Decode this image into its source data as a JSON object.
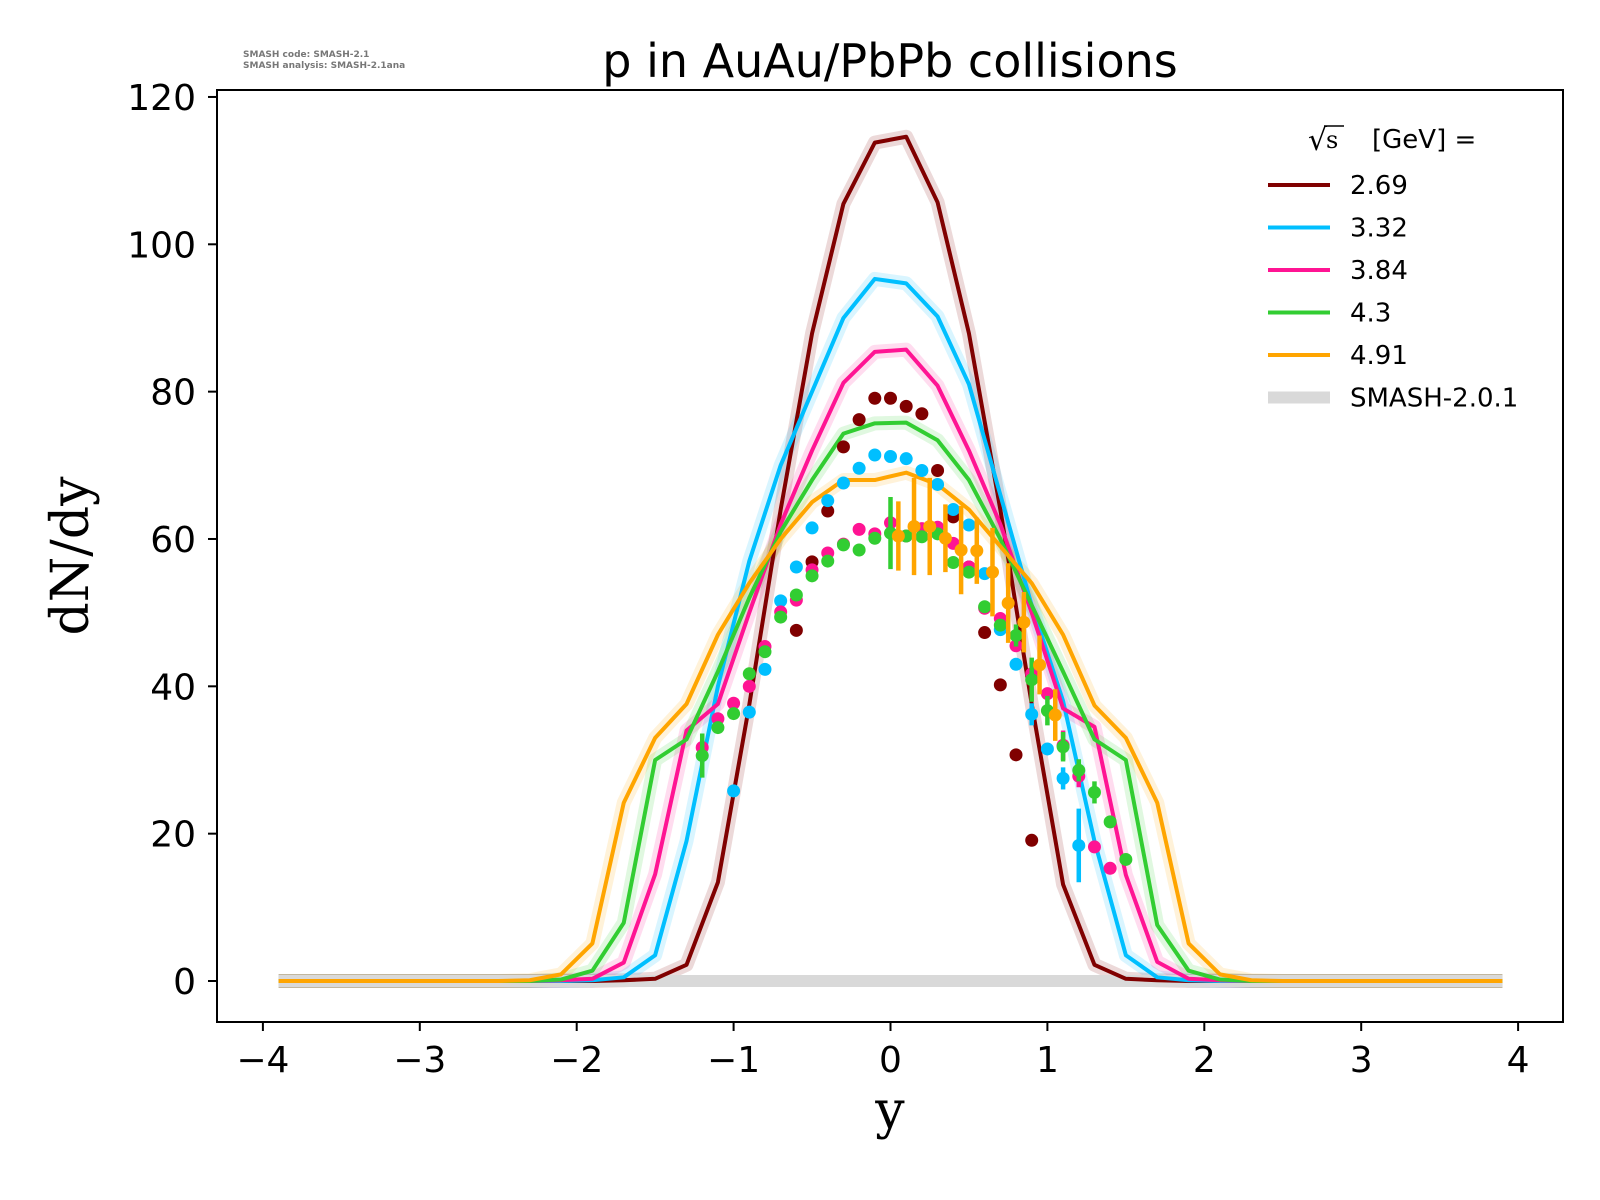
{
  "chart_data": {
    "type": "line",
    "title": "p in AuAu/PbPb collisions",
    "xlabel": "y",
    "ylabel": "dN/dy",
    "xlim": [
      -4.3,
      4.3
    ],
    "ylim": [
      -5.5,
      121
    ],
    "xticks": [
      "−4",
      "−3",
      "−2",
      "−1",
      "0",
      "1",
      "2",
      "3",
      "4"
    ],
    "xtick_values": [
      -4,
      -3,
      -2,
      -1,
      0,
      1,
      2,
      3,
      4
    ],
    "yticks": [
      "0",
      "20",
      "40",
      "60",
      "80",
      "100",
      "120"
    ],
    "ytick_values": [
      0,
      20,
      40,
      60,
      80,
      100,
      120
    ],
    "grid": false,
    "watermark": [
      "SMASH code:      SMASH-2.1",
      "SMASH analysis: SMASH-2.1ana"
    ],
    "legend": {
      "title_sqrt": "s",
      "title": "[GeV] =",
      "placement": "top-right",
      "band_label": "SMASH-2.0.1",
      "band_color": "#d9d9d9"
    },
    "x": [
      -3.9,
      -3.7,
      -3.5,
      -3.3,
      -3.1,
      -2.9,
      -2.7,
      -2.5,
      -2.3,
      -2.1,
      -1.9,
      -1.7,
      -1.5,
      -1.3,
      -1.1,
      -0.9,
      -0.7,
      -0.5,
      -0.3,
      -0.1,
      0.1,
      0.3,
      0.5,
      0.7,
      0.9,
      1.1,
      1.3,
      1.5,
      1.7,
      1.9,
      2.1,
      2.3,
      2.5,
      2.7,
      2.9,
      3.1,
      3.3,
      3.5,
      3.7,
      3.9
    ],
    "series": [
      {
        "name": "2.69",
        "color": "#800000",
        "values": [
          0,
          0,
          0,
          0,
          0,
          0,
          0,
          0,
          0,
          0,
          0,
          0.1,
          0.3,
          2.2,
          13.4,
          37.5,
          64,
          87.9,
          105.5,
          113.8,
          114.6,
          105.7,
          87.9,
          64,
          37.6,
          13.1,
          2.2,
          0.3,
          0.1,
          0,
          0,
          0,
          0,
          0,
          0,
          0,
          0,
          0,
          0,
          0
        ],
        "points": [
          [
            -0.6,
            47.6,
            0
          ],
          [
            -0.5,
            56.9,
            0
          ],
          [
            -0.4,
            63.8,
            0
          ],
          [
            -0.3,
            72.5,
            0
          ],
          [
            -0.2,
            76.2,
            0
          ],
          [
            -0.1,
            79.1,
            0
          ],
          [
            0,
            79.1,
            0
          ],
          [
            0.1,
            78.0,
            0
          ],
          [
            0.2,
            77.0,
            0
          ],
          [
            0.3,
            69.3,
            0
          ],
          [
            0.4,
            63.0,
            0
          ],
          [
            0.5,
            56.2,
            0
          ],
          [
            0.6,
            47.3,
            0
          ],
          [
            0.7,
            40.2,
            0
          ],
          [
            0.8,
            30.7,
            0
          ],
          [
            0.9,
            19.1,
            0
          ]
        ]
      },
      {
        "name": "3.32",
        "color": "#00bfff",
        "values": [
          0,
          0,
          0,
          0,
          0,
          0,
          0,
          0,
          0,
          0,
          0.1,
          0.5,
          3.5,
          19,
          40,
          57,
          70,
          80,
          90,
          95.3,
          94.7,
          90.2,
          81,
          66,
          51,
          38,
          19,
          3.5,
          0.5,
          0.1,
          0,
          0,
          0,
          0,
          0,
          0,
          0,
          0,
          0,
          0
        ],
        "points": [
          [
            -1.0,
            25.8,
            0
          ],
          [
            -0.9,
            36.5,
            0
          ],
          [
            -0.8,
            42.3,
            0
          ],
          [
            -0.7,
            51.6,
            0
          ],
          [
            -0.6,
            56.2,
            0
          ],
          [
            -0.5,
            61.5,
            0
          ],
          [
            -0.4,
            65.2,
            0
          ],
          [
            -0.3,
            67.6,
            0
          ],
          [
            -0.2,
            69.6,
            0
          ],
          [
            -0.1,
            71.4,
            0
          ],
          [
            0,
            71.2,
            0
          ],
          [
            0.1,
            70.9,
            0
          ],
          [
            0.2,
            69.3,
            0
          ],
          [
            0.3,
            67.4,
            0
          ],
          [
            0.4,
            64.0,
            0
          ],
          [
            0.5,
            61.9,
            0
          ],
          [
            0.6,
            55.3,
            0
          ],
          [
            0.7,
            47.7,
            0
          ],
          [
            0.8,
            43.0,
            0
          ],
          [
            0.9,
            36.2,
            1.5
          ],
          [
            1.0,
            31.5,
            0
          ],
          [
            1.1,
            27.5,
            1.5
          ],
          [
            1.2,
            18.4,
            5
          ]
        ]
      },
      {
        "name": "3.84",
        "color": "#ff1493",
        "values": [
          0,
          0,
          0,
          0,
          0,
          0,
          0,
          0,
          0,
          0.1,
          0.3,
          2.5,
          14.5,
          34,
          37.6,
          50,
          62,
          72,
          81.2,
          85.4,
          85.7,
          80.8,
          72,
          62,
          50,
          37,
          34.5,
          14.4,
          2.6,
          0.3,
          0.1,
          0,
          0,
          0,
          0,
          0,
          0,
          0,
          0,
          0
        ],
        "points": [
          [
            -1.2,
            31.7,
            0
          ],
          [
            -1.1,
            35.6,
            0
          ],
          [
            -1.0,
            37.7,
            0
          ],
          [
            -0.9,
            40.0,
            0
          ],
          [
            -0.8,
            45.4,
            0
          ],
          [
            -0.7,
            50.1,
            0
          ],
          [
            -0.6,
            51.7,
            0
          ],
          [
            -0.5,
            55.8,
            0
          ],
          [
            -0.4,
            58.1,
            0
          ],
          [
            -0.3,
            59.3,
            0
          ],
          [
            -0.2,
            61.3,
            0
          ],
          [
            -0.1,
            60.7,
            0
          ],
          [
            0,
            62.2,
            0
          ],
          [
            0.1,
            60.4,
            0
          ],
          [
            0.2,
            61.4,
            0
          ],
          [
            0.3,
            61.6,
            0
          ],
          [
            0.4,
            59.4,
            0
          ],
          [
            0.5,
            56.2,
            0
          ],
          [
            0.6,
            50.6,
            0
          ],
          [
            0.7,
            49.2,
            0
          ],
          [
            0.8,
            45.5,
            0
          ],
          [
            0.9,
            41.7,
            0
          ],
          [
            1.0,
            39.0,
            0
          ],
          [
            1.1,
            32.0,
            2
          ],
          [
            1.2,
            27.8,
            1.5
          ],
          [
            1.3,
            18.2,
            0
          ],
          [
            1.4,
            15.3,
            0
          ]
        ]
      },
      {
        "name": "4.3",
        "color": "#32cd32",
        "values": [
          0,
          0,
          0,
          0,
          0,
          0,
          0,
          0,
          0,
          0.2,
          1.4,
          7.9,
          30,
          32.8,
          42,
          52,
          61,
          68,
          74.3,
          75.7,
          75.8,
          73.4,
          68,
          60,
          51,
          42,
          32.8,
          30,
          7.6,
          1.4,
          0.2,
          0,
          0,
          0,
          0,
          0,
          0,
          0,
          0,
          0
        ],
        "points": [
          [
            -1.2,
            30.6,
            3
          ],
          [
            -1.1,
            34.4,
            0
          ],
          [
            -1.0,
            36.3,
            0
          ],
          [
            -0.9,
            41.7,
            0
          ],
          [
            -0.8,
            44.7,
            0
          ],
          [
            -0.7,
            49.4,
            0
          ],
          [
            -0.6,
            52.4,
            0
          ],
          [
            -0.5,
            55.0,
            0
          ],
          [
            -0.4,
            57.0,
            0
          ],
          [
            -0.3,
            59.2,
            0
          ],
          [
            -0.2,
            58.5,
            0
          ],
          [
            -0.1,
            60.1,
            0
          ],
          [
            0,
            60.8,
            4.9
          ],
          [
            0.1,
            60.4,
            0
          ],
          [
            0.2,
            60.3,
            0
          ],
          [
            0.3,
            60.7,
            0
          ],
          [
            0.4,
            56.8,
            0
          ],
          [
            0.5,
            55.5,
            0
          ],
          [
            0.6,
            50.8,
            0
          ],
          [
            0.7,
            48.3,
            0
          ],
          [
            0.8,
            46.9,
            1.5
          ],
          [
            0.9,
            40.9,
            3
          ],
          [
            1.0,
            36.7,
            2
          ],
          [
            1.1,
            31.8,
            2
          ],
          [
            1.2,
            28.6,
            1.5
          ],
          [
            1.3,
            25.6,
            1.5
          ],
          [
            1.4,
            21.6,
            0
          ],
          [
            1.5,
            16.5,
            0
          ]
        ]
      },
      {
        "name": "4.91",
        "color": "#ffa500",
        "values": [
          0,
          0,
          0,
          0,
          0,
          0,
          0,
          0,
          0.1,
          0.9,
          5.1,
          24.2,
          33,
          37.6,
          47,
          54,
          60,
          65,
          68,
          68,
          69,
          67.4,
          64,
          59,
          54,
          47,
          37.4,
          33,
          24.2,
          5.1,
          0.9,
          0.1,
          0,
          0,
          0,
          0,
          0,
          0,
          0,
          0
        ],
        "points": [
          [
            0.05,
            60.4,
            4.7
          ],
          [
            0.15,
            61.7,
            6.6
          ],
          [
            0.25,
            61.7,
            6.6
          ],
          [
            0.35,
            60.1,
            4.6
          ],
          [
            0.45,
            58.5,
            6
          ],
          [
            0.55,
            58.4,
            4.5
          ],
          [
            0.65,
            55.5,
            6
          ],
          [
            0.75,
            51.3,
            5.4
          ],
          [
            0.85,
            48.7,
            4.1
          ],
          [
            0.95,
            42.9,
            4
          ],
          [
            1.05,
            36.1,
            3.5
          ]
        ]
      }
    ]
  }
}
